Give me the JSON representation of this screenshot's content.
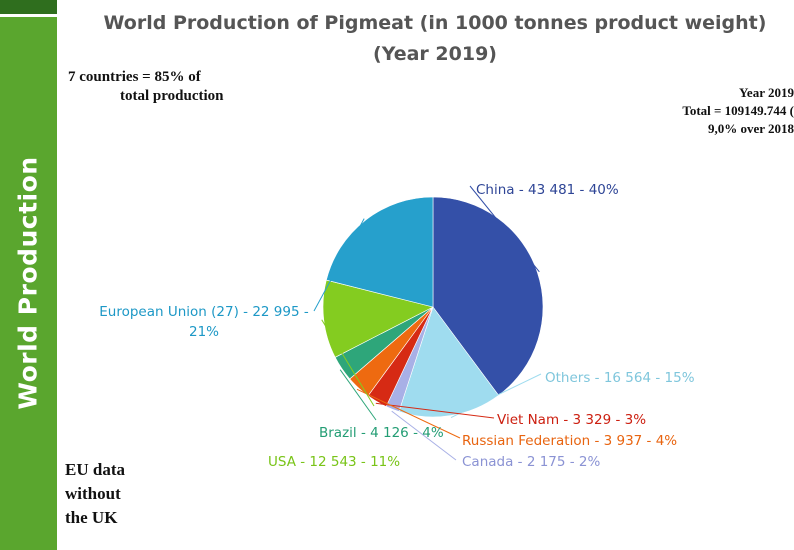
{
  "sidebar": {
    "label": "World Production"
  },
  "title": {
    "line1": "World Production of Pigmeat (in 1000 tonnes product weight)",
    "line2": "(Year 2019)"
  },
  "notes": {
    "left_line1": "7 countries = 85% of",
    "left_line2": "total production",
    "right_line1": "Year 2019",
    "right_line2": "Total = 109149.744 (",
    "right_line3": "9,0% over 2018",
    "eu_line1": "EU data",
    "eu_line2": "without",
    "eu_line3": "the UK"
  },
  "chart_data": {
    "type": "pie",
    "title": "World Production of Pigmeat (in 1000 tonnes product weight) (Year 2019)",
    "slices": [
      {
        "name": "China",
        "value": 43481,
        "percent": 40,
        "label": "China - 43 481 - 40%",
        "color": "#3450a8",
        "label_color": "#2e4596"
      },
      {
        "name": "Others",
        "value": 16564,
        "percent": 15,
        "label": "Others - 16 564 - 15%",
        "color": "#9fdcef",
        "label_color": "#7fc6dc"
      },
      {
        "name": "Canada",
        "value": 2175,
        "percent": 2,
        "label": "Canada - 2 175 - 2%",
        "color": "#a8b0e6",
        "label_color": "#8b93d4"
      },
      {
        "name": "Viet Nam",
        "value": 3329,
        "percent": 3,
        "label": "Viet Nam - 3 329 - 3%",
        "color": "#d62a14",
        "label_color": "#cc1f10"
      },
      {
        "name": "Russian Federation",
        "value": 3937,
        "percent": 4,
        "label": "Russian Federation - 3 937 - 4%",
        "color": "#ee6a10",
        "label_color": "#e86410"
      },
      {
        "name": "Brazil",
        "value": 4126,
        "percent": 4,
        "label": "Brazil - 4 126 - 4%",
        "color": "#2ea67a",
        "label_color": "#239d74"
      },
      {
        "name": "USA",
        "value": 12543,
        "percent": 11,
        "label": "USA - 12 543 - 11%",
        "color": "#84cc20",
        "label_color": "#79c418"
      },
      {
        "name": "European Union (27)",
        "value": 22995,
        "percent": 21,
        "label_line1": "European Union (27) - 22 995 -",
        "label_line2": "21%",
        "color": "#26a0cc",
        "label_color": "#1d98c6"
      }
    ]
  }
}
